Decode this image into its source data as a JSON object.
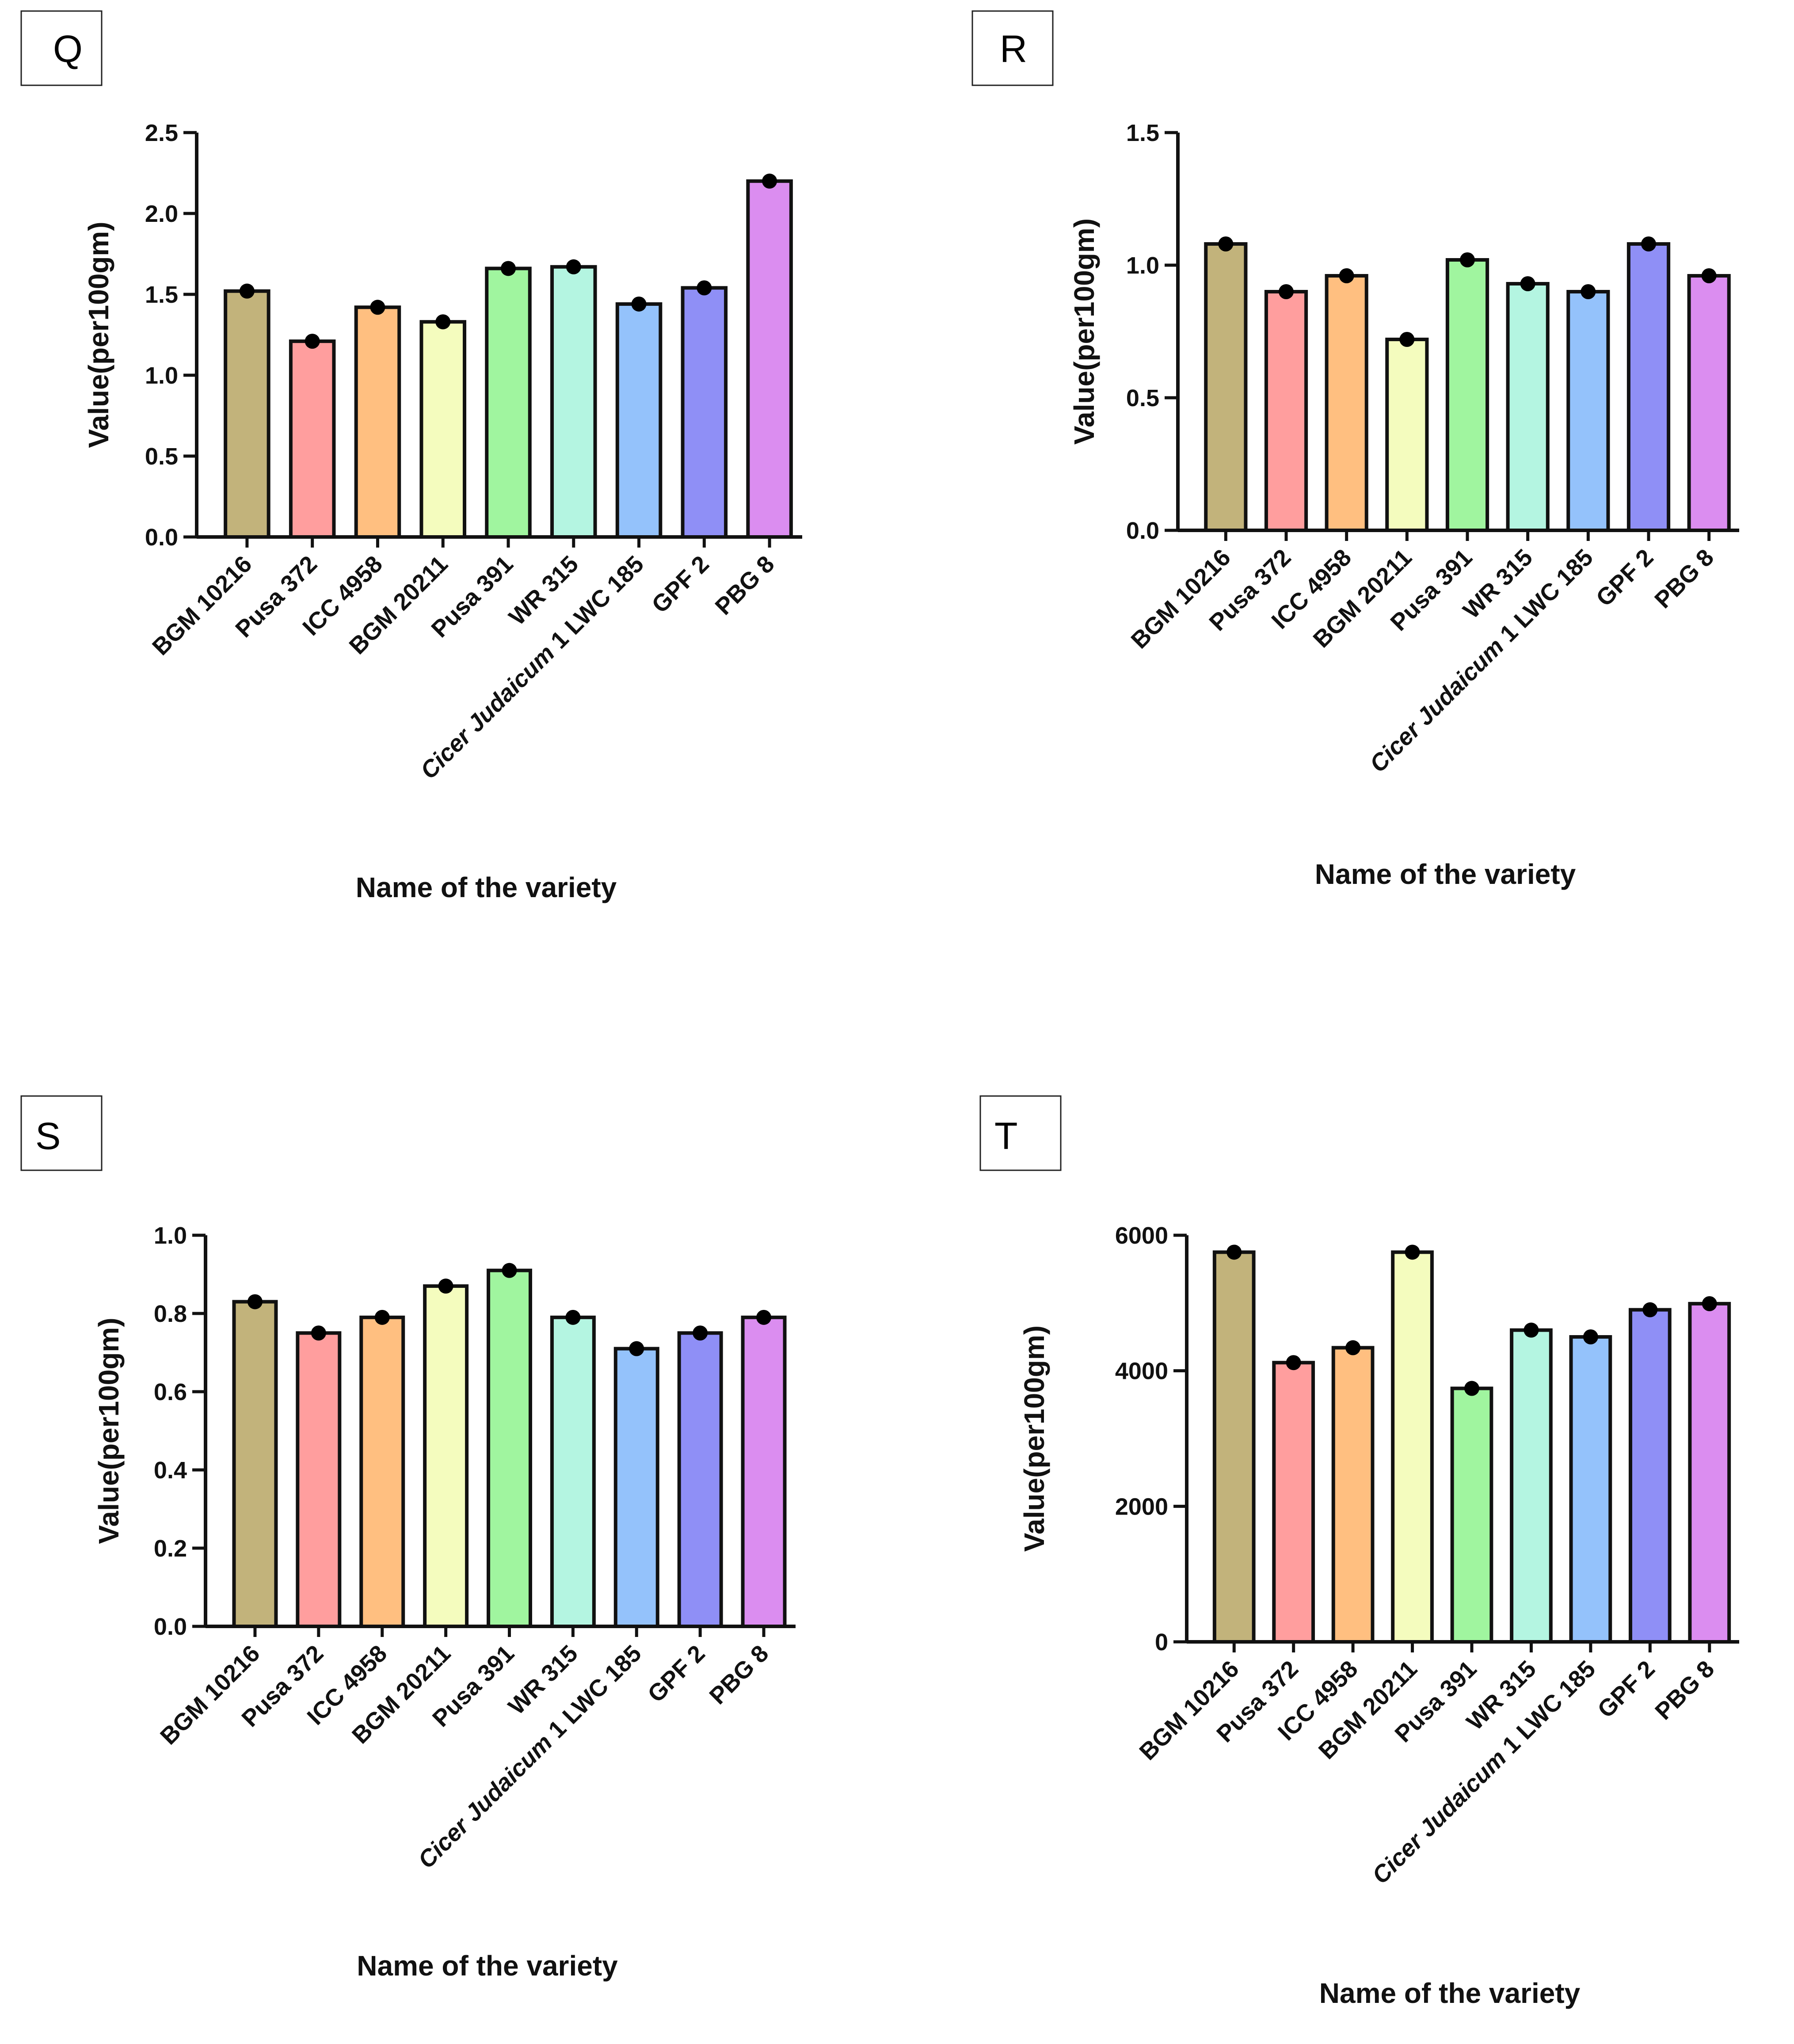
{
  "figure": {
    "layout": "2x2 grid of bar charts",
    "panels_order": [
      "Q",
      "R",
      "S",
      "T"
    ]
  },
  "chart_data": [
    {
      "panel": "Q",
      "type": "bar",
      "categories": [
        "BGM 10216",
        "Pusa 372",
        "ICC 4958",
        "BGM 20211",
        "Pusa 391",
        "WR 315",
        "Cicer Judaicum 1 LWC 185",
        "GPF 2",
        "PBG 8"
      ],
      "values": [
        1.52,
        1.21,
        1.42,
        1.33,
        1.66,
        1.67,
        1.44,
        1.54,
        2.2
      ],
      "colors": [
        "#c2b37b",
        "#ff9e9e",
        "#ffbf80",
        "#f4fcbe",
        "#a0f59f",
        "#b4f5e1",
        "#94c2fb",
        "#8f8ff6",
        "#db8df0"
      ],
      "xlabel": "Name of the variety",
      "ylabel": "Value(per100gm)",
      "ylim": [
        0,
        2.5
      ],
      "yticks": [
        "0.0",
        "0.5",
        "1.0",
        "1.5",
        "2.0",
        "2.5"
      ],
      "grid": false,
      "italic_category": "Cicer Judaicum"
    },
    {
      "panel": "R",
      "type": "bar",
      "categories": [
        "BGM 10216",
        "Pusa 372",
        "ICC 4958",
        "BGM 20211",
        "Pusa 391",
        "WR 315",
        "Cicer Judaicum 1 LWC 185",
        "GPF 2",
        "PBG 8"
      ],
      "values": [
        1.08,
        0.9,
        0.96,
        0.72,
        1.02,
        0.93,
        0.9,
        1.08,
        0.96
      ],
      "colors": [
        "#c2b37b",
        "#ff9e9e",
        "#ffbf80",
        "#f4fcbe",
        "#a0f59f",
        "#b4f5e1",
        "#94c2fb",
        "#8f8ff6",
        "#db8df0"
      ],
      "xlabel": "Name of the variety",
      "ylabel": "Value(per100gm)",
      "ylim": [
        0,
        1.5
      ],
      "yticks": [
        "0.0",
        "0.5",
        "1.0",
        "1.5"
      ],
      "grid": false,
      "italic_category": "Cicer Judaicum"
    },
    {
      "panel": "S",
      "type": "bar",
      "categories": [
        "BGM 10216",
        "Pusa 372",
        "ICC 4958",
        "BGM 20211",
        "Pusa 391",
        "WR 315",
        "Cicer Judaicum 1 LWC 185",
        "GPF 2",
        "PBG 8"
      ],
      "values": [
        0.83,
        0.75,
        0.79,
        0.87,
        0.91,
        0.79,
        0.71,
        0.75,
        0.79
      ],
      "colors": [
        "#c2b37b",
        "#ff9e9e",
        "#ffbf80",
        "#f4fcbe",
        "#a0f59f",
        "#b4f5e1",
        "#94c2fb",
        "#8f8ff6",
        "#db8df0"
      ],
      "xlabel": "Name of the variety",
      "ylabel": "Value(per100gm)",
      "ylim": [
        0,
        1.0
      ],
      "yticks": [
        "0.0",
        "0.2",
        "0.4",
        "0.6",
        "0.8",
        "1.0"
      ],
      "grid": false,
      "italic_category": "Cicer Judaicum"
    },
    {
      "panel": "T",
      "type": "bar",
      "categories": [
        "BGM 10216",
        "Pusa 372",
        "ICC 4958",
        "BGM 20211",
        "Pusa 391",
        "WR 315",
        "Cicer Judaicum 1 LWC 185",
        "GPF 2",
        "PBG 8"
      ],
      "values": [
        5750,
        4120,
        4340,
        5750,
        3740,
        4600,
        4500,
        4900,
        4990
      ],
      "colors": [
        "#c2b37b",
        "#ff9e9e",
        "#ffbf80",
        "#f4fcbe",
        "#a0f59f",
        "#b4f5e1",
        "#94c2fb",
        "#8f8ff6",
        "#db8df0"
      ],
      "xlabel": "Name of the variety",
      "ylabel": "Value(per100gm)",
      "ylim": [
        0,
        6000
      ],
      "yticks": [
        "0",
        "2000",
        "4000",
        "6000"
      ],
      "grid": false,
      "italic_category": "Cicer Judaicum"
    }
  ]
}
